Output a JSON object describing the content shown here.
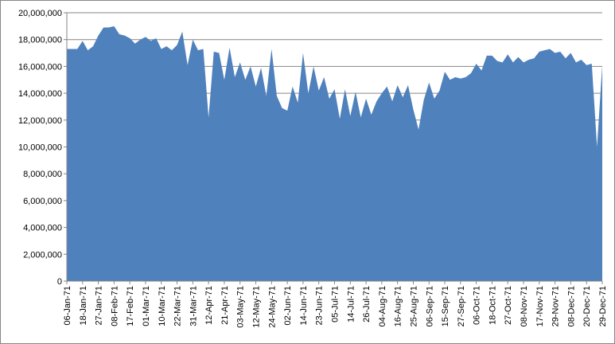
{
  "chart_data": {
    "type": "area",
    "categories": [
      "06-Jan-71",
      null,
      null,
      "18-Jan-71",
      null,
      null,
      "27-Jan-71",
      null,
      null,
      "08-Feb-71",
      null,
      null,
      "17-Feb-71",
      null,
      null,
      "01-Mar-71",
      null,
      null,
      "10-Mar-71",
      null,
      null,
      "22-Mar-71",
      null,
      null,
      "31-Mar-71",
      null,
      null,
      "12-Apr-71",
      null,
      null,
      "21-Apr-71",
      null,
      null,
      "03-May-71",
      null,
      null,
      "12-May-71",
      null,
      null,
      "24-May-71",
      null,
      null,
      "02-Jun-71",
      null,
      null,
      "14-Jun-71",
      null,
      null,
      "23-Jun-71",
      null,
      null,
      "05-Jul-71",
      null,
      null,
      "14-Jul-71",
      null,
      null,
      "26-Jul-71",
      null,
      null,
      "04-Aug-71",
      null,
      null,
      "16-Aug-71",
      null,
      null,
      "25-Aug-71",
      null,
      null,
      "06-Sep-71",
      null,
      null,
      "15-Sep-71",
      null,
      null,
      "27-Sep-71",
      null,
      null,
      "06-Oct-71",
      null,
      null,
      "18-Oct-71",
      null,
      null,
      "27-Oct-71",
      null,
      null,
      "08-Nov-71",
      null,
      null,
      "17-Nov-71",
      null,
      null,
      "29-Nov-71",
      null,
      null,
      "08-Dec-71",
      null,
      null,
      "20-Dec-71",
      null,
      null,
      "29-Dec-71"
    ],
    "values": [
      17300000,
      17300000,
      17300000,
      17900000,
      17200000,
      17500000,
      18300000,
      18900000,
      18900000,
      19000000,
      18400000,
      18300000,
      18100000,
      17700000,
      18000000,
      18200000,
      17900000,
      18100000,
      17300000,
      17500000,
      17200000,
      17600000,
      18600000,
      16100000,
      18000000,
      17200000,
      17300000,
      12200000,
      17100000,
      17000000,
      15000000,
      17400000,
      15200000,
      16300000,
      15000000,
      16000000,
      14500000,
      15900000,
      13800000,
      17300000,
      13800000,
      12900000,
      12700000,
      14500000,
      13300000,
      17000000,
      14000000,
      16000000,
      14200000,
      15200000,
      13600000,
      14300000,
      12100000,
      14300000,
      12300000,
      14100000,
      12200000,
      13600000,
      12400000,
      13400000,
      14000000,
      14500000,
      13400000,
      14600000,
      13700000,
      14600000,
      12800000,
      11300000,
      13500000,
      14800000,
      13600000,
      14200000,
      15600000,
      15000000,
      15200000,
      15100000,
      15200000,
      15500000,
      16200000,
      15700000,
      16800000,
      16800000,
      16400000,
      16300000,
      16900000,
      16300000,
      16700000,
      16300000,
      16500000,
      16600000,
      17100000,
      17200000,
      17300000,
      17000000,
      17100000,
      16600000,
      17000000,
      16300000,
      16500000,
      16100000,
      16200000,
      10000000,
      16100000
    ],
    "color": "#4f81bd",
    "ylim": [
      0,
      20000000
    ],
    "yticks": [
      0,
      {
        "value": 2000000,
        "label": "2,000,000"
      },
      {
        "value": 4000000,
        "label": "4,000,000"
      },
      {
        "value": 6000000,
        "label": "6,000,000"
      },
      {
        "value": 8000000,
        "label": "8,000,000"
      },
      {
        "value": 10000000,
        "label": "10,000,000"
      },
      {
        "value": 12000000,
        "label": "12,000,000"
      },
      {
        "value": 14000000,
        "label": "14,000,000"
      },
      {
        "value": 16000000,
        "label": "16,000,000"
      },
      {
        "value": 18000000,
        "label": "18,000,000"
      },
      {
        "value": 20000000,
        "label": "20,000,000"
      }
    ],
    "grid": true
  }
}
